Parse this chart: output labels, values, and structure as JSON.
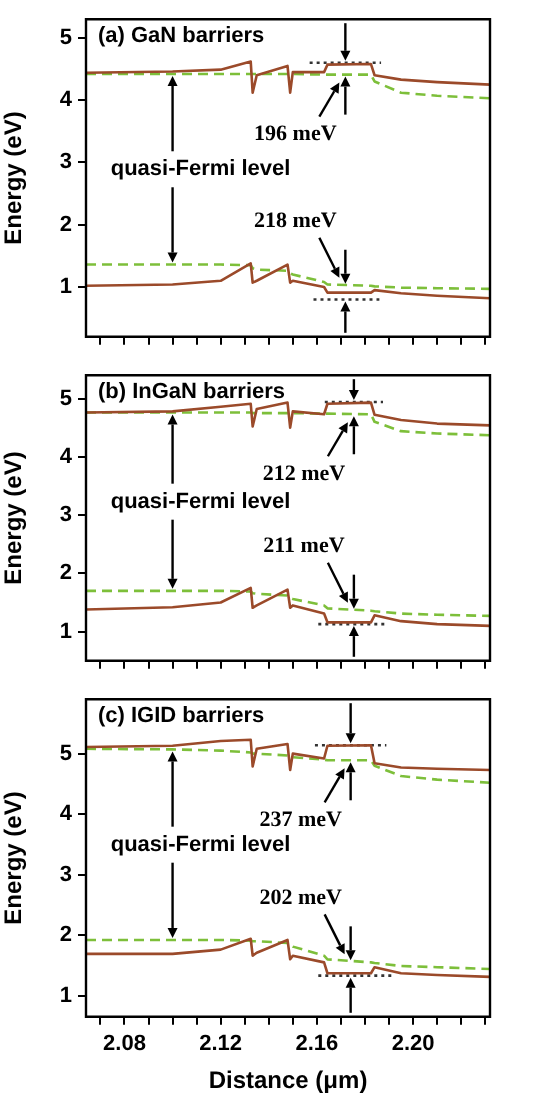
{
  "chart_data": [
    {
      "type": "line",
      "title": "(a) GaN barriers",
      "ylabel": "Energy (eV)",
      "tick_labels": "y",
      "xlim": [
        2.064,
        2.232
      ],
      "ylim": [
        0.2,
        5.3
      ],
      "xticks": [
        {
          "value": 2.07,
          "label": null
        },
        2.08,
        {
          "value": 2.09,
          "label": null
        },
        {
          "value": 2.1,
          "label": null
        },
        {
          "value": 2.11,
          "label": null
        },
        2.12,
        {
          "value": 2.13,
          "label": null
        },
        {
          "value": 2.14,
          "label": null
        },
        {
          "value": 2.15,
          "label": null
        },
        2.16,
        {
          "value": 2.17,
          "label": null
        },
        {
          "value": 2.18,
          "label": null
        },
        {
          "value": 2.19,
          "label": null
        },
        2.2,
        {
          "value": 2.21,
          "label": null
        },
        {
          "value": 2.22,
          "label": null
        },
        {
          "value": 2.23,
          "label": null
        }
      ],
      "yticks": [
        1,
        2,
        3,
        4,
        5
      ],
      "x": [
        2.064,
        2.1,
        2.12,
        2.1325,
        2.1333,
        2.135,
        2.1478,
        2.1489,
        2.15,
        2.163,
        2.1644,
        2.1825,
        2.184,
        2.195,
        2.21,
        2.232
      ],
      "series": [
        {
          "color": "#9b4a2a",
          "line_style": "solid",
          "values": [
            4.44,
            4.46,
            4.49,
            4.62,
            4.12,
            4.4,
            4.55,
            4.12,
            4.45,
            4.45,
            4.57,
            4.58,
            4.4,
            4.33,
            4.29,
            4.25
          ]
        },
        {
          "color": "#7dbf3a",
          "line_style": "dashed",
          "values": [
            4.42,
            4.42,
            4.42,
            4.42,
            4.42,
            4.42,
            4.42,
            4.42,
            4.42,
            4.41,
            4.41,
            4.41,
            4.3,
            4.12,
            4.07,
            4.03
          ]
        },
        {
          "color": "#9b4a2a",
          "line_style": "solid",
          "values": [
            1.02,
            1.04,
            1.1,
            1.38,
            1.07,
            1.1,
            1.36,
            1.07,
            1.1,
            1.0,
            0.91,
            0.91,
            0.95,
            0.9,
            0.86,
            0.82
          ]
        },
        {
          "color": "#7dbf3a",
          "line_style": "dashed",
          "values": [
            1.36,
            1.36,
            1.36,
            1.35,
            1.3,
            1.28,
            1.26,
            1.22,
            1.2,
            1.08,
            1.04,
            1.02,
            1.01,
            0.99,
            0.98,
            0.97
          ]
        },
        {
          "color": "#333333",
          "line_style": "dotted",
          "x": [
            2.157,
            2.1867
          ],
          "values": [
            4.6,
            4.6
          ]
        },
        {
          "color": "#333333",
          "line_style": "dotted",
          "x": [
            2.1586,
            2.186
          ],
          "values": [
            0.8,
            0.8
          ]
        }
      ],
      "annotations": [
        "quasi-Fermi level",
        "196 meV",
        "218 meV"
      ]
    },
    {
      "type": "line",
      "title": "(b) InGaN barriers",
      "ylabel": "Energy (eV)",
      "tick_labels": "y",
      "xlim": [
        2.064,
        2.232
      ],
      "ylim": [
        0.5,
        5.4
      ],
      "xticks": [
        {
          "value": 2.07,
          "label": null
        },
        2.08,
        {
          "value": 2.09,
          "label": null
        },
        {
          "value": 2.1,
          "label": null
        },
        {
          "value": 2.11,
          "label": null
        },
        2.12,
        {
          "value": 2.13,
          "label": null
        },
        {
          "value": 2.14,
          "label": null
        },
        {
          "value": 2.15,
          "label": null
        },
        2.16,
        {
          "value": 2.17,
          "label": null
        },
        {
          "value": 2.18,
          "label": null
        },
        {
          "value": 2.19,
          "label": null
        },
        2.2,
        {
          "value": 2.21,
          "label": null
        },
        {
          "value": 2.22,
          "label": null
        },
        {
          "value": 2.23,
          "label": null
        }
      ],
      "yticks": [
        1,
        2,
        3,
        4,
        5
      ],
      "x": [
        2.064,
        2.1,
        2.12,
        2.1325,
        2.1333,
        2.135,
        2.1478,
        2.1489,
        2.15,
        2.163,
        2.1644,
        2.1825,
        2.184,
        2.195,
        2.21,
        2.232
      ],
      "series": [
        {
          "color": "#9b4a2a",
          "line_style": "solid",
          "values": [
            4.76,
            4.78,
            4.86,
            4.91,
            4.52,
            4.82,
            4.93,
            4.5,
            4.78,
            4.73,
            4.91,
            4.93,
            4.72,
            4.63,
            4.57,
            4.54
          ]
        },
        {
          "color": "#7dbf3a",
          "line_style": "dashed",
          "values": [
            4.76,
            4.76,
            4.76,
            4.76,
            4.75,
            4.75,
            4.75,
            4.75,
            4.75,
            4.74,
            4.74,
            4.73,
            4.6,
            4.44,
            4.4,
            4.37
          ]
        },
        {
          "color": "#9b4a2a",
          "line_style": "solid",
          "values": [
            1.38,
            1.42,
            1.5,
            1.75,
            1.41,
            1.45,
            1.72,
            1.41,
            1.45,
            1.31,
            1.16,
            1.16,
            1.28,
            1.18,
            1.13,
            1.1
          ]
        },
        {
          "color": "#7dbf3a",
          "line_style": "dashed",
          "values": [
            1.7,
            1.7,
            1.7,
            1.69,
            1.66,
            1.65,
            1.62,
            1.58,
            1.56,
            1.45,
            1.4,
            1.36,
            1.35,
            1.31,
            1.29,
            1.27
          ]
        },
        {
          "color": "#333333",
          "line_style": "dotted",
          "x": [
            2.1633,
            2.1875
          ],
          "values": [
            4.94,
            4.94
          ]
        },
        {
          "color": "#333333",
          "line_style": "dotted",
          "x": [
            2.1606,
            2.1892
          ],
          "values": [
            1.13,
            1.13
          ]
        }
      ],
      "annotations": [
        "quasi-Fermi level",
        "212 meV",
        "211 meV"
      ]
    },
    {
      "type": "line",
      "title": "(c) IGID barriers",
      "ylabel": "Energy (eV)",
      "xlabel": "Distance (μm)",
      "xlim": [
        2.064,
        2.232
      ],
      "ylim": [
        0.65,
        5.9
      ],
      "xticks": [
        {
          "value": 2.07,
          "label": null
        },
        2.08,
        {
          "value": 2.09,
          "label": null
        },
        {
          "value": 2.1,
          "label": null
        },
        {
          "value": 2.11,
          "label": null
        },
        2.12,
        {
          "value": 2.13,
          "label": null
        },
        {
          "value": 2.14,
          "label": null
        },
        {
          "value": 2.15,
          "label": null
        },
        2.16,
        {
          "value": 2.17,
          "label": null
        },
        {
          "value": 2.18,
          "label": null
        },
        {
          "value": 2.19,
          "label": null
        },
        {
          "value": 2.2,
          "label": "2.20"
        },
        {
          "value": 2.21,
          "label": null
        },
        {
          "value": 2.22,
          "label": null
        },
        {
          "value": 2.23,
          "label": null
        }
      ],
      "yticks": [
        1,
        2,
        3,
        4,
        5
      ],
      "x": [
        2.064,
        2.1,
        2.12,
        2.1325,
        2.1333,
        2.135,
        2.1478,
        2.1489,
        2.15,
        2.163,
        2.1644,
        2.1825,
        2.184,
        2.195,
        2.21,
        2.232
      ],
      "series": [
        {
          "color": "#9b4a2a",
          "line_style": "solid",
          "values": [
            5.11,
            5.13,
            5.21,
            5.23,
            4.79,
            5.08,
            5.16,
            4.73,
            5.0,
            4.92,
            5.13,
            5.14,
            4.84,
            4.77,
            4.75,
            4.73
          ]
        },
        {
          "color": "#7dbf3a",
          "line_style": "dashed",
          "values": [
            5.08,
            5.07,
            5.05,
            5.02,
            5.0,
            5.0,
            4.97,
            4.95,
            4.94,
            4.9,
            4.89,
            4.89,
            4.8,
            4.63,
            4.57,
            4.52
          ]
        },
        {
          "color": "#9b4a2a",
          "line_style": "solid",
          "values": [
            1.69,
            1.69,
            1.76,
            1.94,
            1.66,
            1.71,
            1.92,
            1.6,
            1.66,
            1.55,
            1.37,
            1.37,
            1.47,
            1.37,
            1.34,
            1.31
          ]
        },
        {
          "color": "#7dbf3a",
          "line_style": "dashed",
          "values": [
            1.92,
            1.92,
            1.92,
            1.91,
            1.9,
            1.9,
            1.87,
            1.85,
            1.81,
            1.66,
            1.6,
            1.55,
            1.54,
            1.49,
            1.47,
            1.44
          ]
        },
        {
          "color": "#333333",
          "line_style": "dotted",
          "x": [
            2.1592,
            2.1889
          ],
          "values": [
            5.14,
            5.14
          ]
        },
        {
          "color": "#333333",
          "line_style": "dotted",
          "x": [
            2.1606,
            2.1925
          ],
          "values": [
            1.33,
            1.33
          ]
        }
      ],
      "annotations": [
        "quasi-Fermi level",
        "237 meV",
        "202 meV"
      ]
    }
  ]
}
